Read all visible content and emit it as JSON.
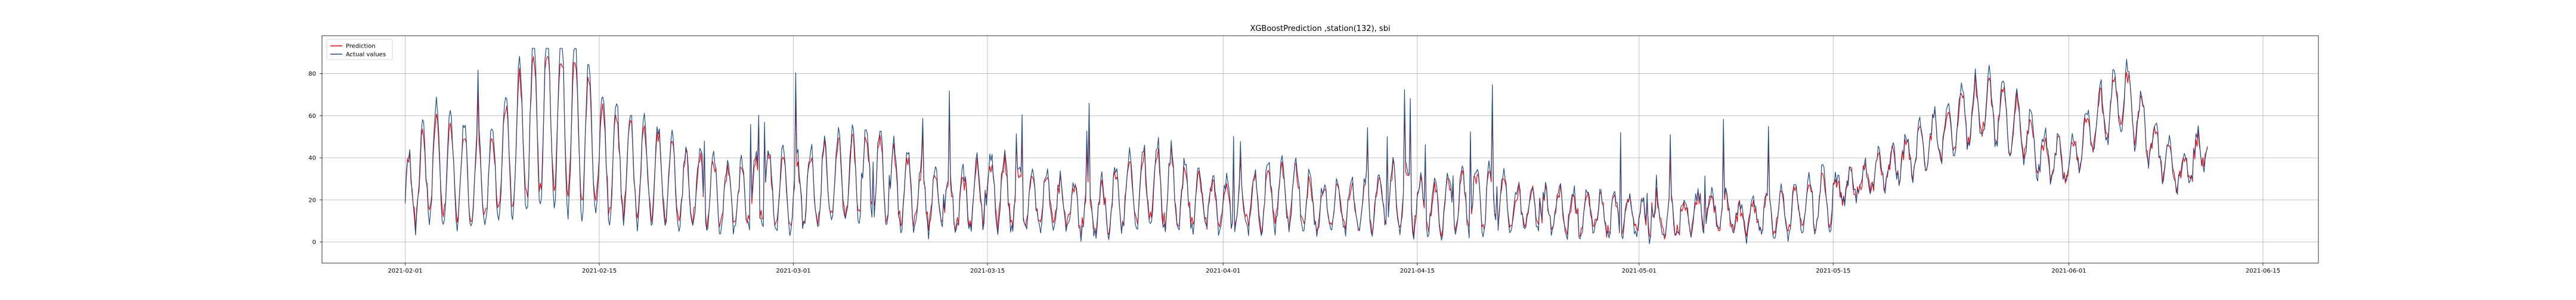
{
  "chart_data": {
    "type": "line",
    "title": "XGBoostPrediction ,station(132), sbi",
    "xlabel": "",
    "ylabel": "",
    "x_range": [
      "2021-01-26",
      "2021-06-19"
    ],
    "ylim": [
      -10,
      98
    ],
    "x_ticks": [
      "2021-02-01",
      "2021-02-15",
      "2021-03-01",
      "2021-03-15",
      "2021-04-01",
      "2021-04-15",
      "2021-05-01",
      "2021-05-15",
      "2021-06-01",
      "2021-06-15"
    ],
    "y_ticks": [
      0,
      20,
      40,
      60,
      80
    ],
    "grid": true,
    "legend": "top-left",
    "series": [
      {
        "name": "Prediction",
        "color": "#ff0000"
      },
      {
        "name": "Actual values",
        "color": "#1f4e8c"
      }
    ],
    "series_data": {
      "dates": [
        "2021-02-01",
        "2021-02-03",
        "2021-02-05",
        "2021-02-07",
        "2021-02-09",
        "2021-02-11",
        "2021-02-13",
        "2021-02-15",
        "2021-02-17",
        "2021-02-19",
        "2021-02-21",
        "2021-02-23",
        "2021-02-25",
        "2021-02-27",
        "2021-03-01",
        "2021-03-03",
        "2021-03-05",
        "2021-03-07",
        "2021-03-09",
        "2021-03-11",
        "2021-03-13",
        "2021-03-15",
        "2021-03-17",
        "2021-03-19",
        "2021-03-21",
        "2021-03-23",
        "2021-03-25",
        "2021-03-27",
        "2021-03-29",
        "2021-03-31",
        "2021-04-02",
        "2021-04-04",
        "2021-04-06",
        "2021-04-08",
        "2021-04-10",
        "2021-04-12",
        "2021-04-14",
        "2021-04-16",
        "2021-04-18",
        "2021-04-20",
        "2021-04-22",
        "2021-04-24",
        "2021-04-26",
        "2021-04-28",
        "2021-04-30",
        "2021-05-02",
        "2021-05-04",
        "2021-05-06",
        "2021-05-08",
        "2021-05-10",
        "2021-05-12",
        "2021-05-14",
        "2021-05-16",
        "2021-05-18",
        "2021-05-20",
        "2021-05-22",
        "2021-05-24",
        "2021-05-26",
        "2021-05-28",
        "2021-05-30",
        "2021-06-01",
        "2021-06-03",
        "2021-06-05",
        "2021-06-07",
        "2021-06-09",
        "2021-06-11"
      ],
      "prediction": [
        20,
        35,
        30,
        28,
        45,
        60,
        55,
        40,
        35,
        30,
        25,
        22,
        20,
        24,
        22,
        25,
        28,
        30,
        22,
        20,
        18,
        22,
        20,
        18,
        16,
        15,
        22,
        25,
        20,
        18,
        15,
        20,
        22,
        15,
        16,
        18,
        20,
        15,
        18,
        20,
        15,
        14,
        13,
        12,
        12,
        10,
        12,
        14,
        10,
        12,
        15,
        18,
        25,
        30,
        38,
        45,
        55,
        60,
        55,
        40,
        35,
        55,
        65,
        45,
        30,
        45
      ],
      "actual": [
        22,
        38,
        32,
        30,
        48,
        62,
        58,
        42,
        36,
        32,
        26,
        23,
        21,
        26,
        24,
        27,
        30,
        32,
        24,
        21,
        19,
        24,
        22,
        19,
        17,
        16,
        24,
        27,
        22,
        19,
        16,
        22,
        24,
        16,
        17,
        19,
        22,
        16,
        19,
        22,
        16,
        15,
        14,
        13,
        13,
        11,
        13,
        15,
        11,
        13,
        16,
        20,
        27,
        32,
        40,
        48,
        58,
        65,
        58,
        42,
        38,
        58,
        70,
        48,
        32,
        48
      ]
    }
  }
}
